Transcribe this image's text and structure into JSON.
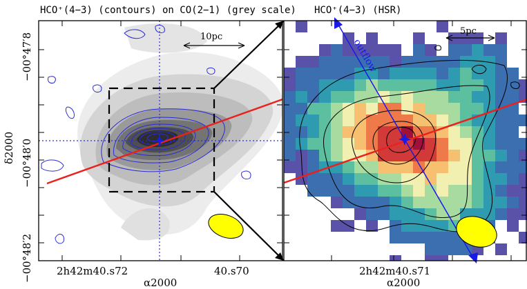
{
  "figure": {
    "left_panel": {
      "title": "HCO⁺(4−3) (contours) on CO(2−1) (grey scale)",
      "scale_bar": "10pc",
      "y_ticks": [
        "−00°47′8",
        "−00°48′0",
        "−00°48′2"
      ],
      "x_ticks": [
        "2h42m40.s72",
        "40.s70"
      ],
      "xlabel": "α2000",
      "ylabel": "δ2000"
    },
    "right_panel": {
      "title": "HCO⁺(4−3) (HSR)",
      "scale_bar": "5pc",
      "annotation": "outflow",
      "x_ticks": [
        "2h42m40.s71"
      ],
      "xlabel": "α2000"
    },
    "colors": {
      "axis_line": "#e8221e",
      "outflow_arrow": "#1a1ae6",
      "contour_blue": "#2a2ad8",
      "beam": "#ffff00"
    }
  }
}
